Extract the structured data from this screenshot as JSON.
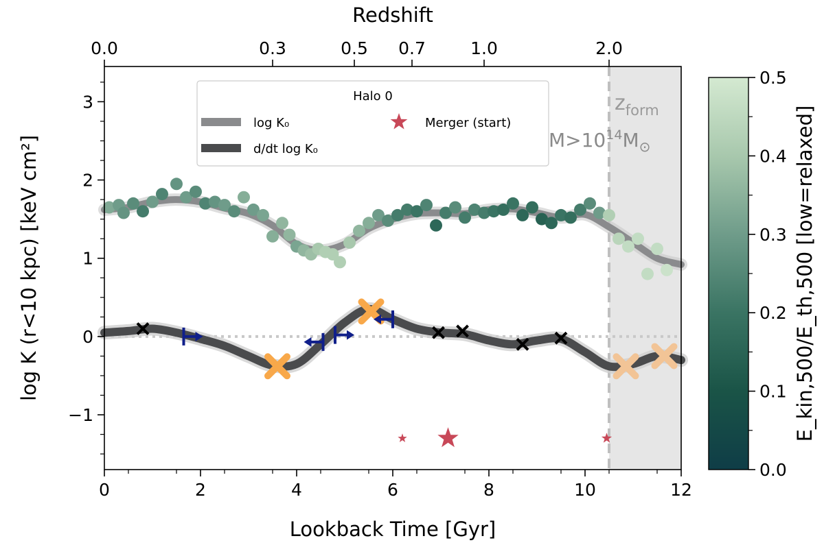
{
  "chart_data": {
    "type": "scatter",
    "title": "",
    "xlabel": "Lookback Time [Gyr]",
    "ylabel": "log K (r<10 kpc) [keV cm²]",
    "top_xlabel": "Redshift",
    "xlim": [
      0,
      12
    ],
    "ylim": [
      -1.7,
      3.45
    ],
    "x_ticks": [
      0,
      2,
      4,
      6,
      8,
      10,
      12
    ],
    "y_ticks": [
      -1,
      0,
      1,
      2,
      3
    ],
    "y_tick_labels": [
      "−1",
      "0",
      "1",
      "2",
      "3"
    ],
    "top_ticks": [
      {
        "label": "0.0",
        "x": 0.0
      },
      {
        "label": "0.3",
        "x": 3.5
      },
      {
        "label": "0.5",
        "x": 5.2
      },
      {
        "label": "0.7",
        "x": 6.4
      },
      {
        "label": "1.0",
        "x": 7.9
      },
      {
        "label": "2.0",
        "x": 10.5
      }
    ],
    "colorbar": {
      "label": "E_kin,500/E_th,500 [low=relaxed]",
      "range": [
        0.0,
        0.5
      ],
      "ticks": [
        0.0,
        0.1,
        0.2,
        0.3,
        0.4,
        0.5
      ],
      "tick_labels": [
        "0.0",
        "0.1",
        "0.2",
        "0.3",
        "0.4",
        "0.5"
      ],
      "colors": [
        "#0f3d47",
        "#1a5447",
        "#3a7463",
        "#6f9c8a",
        "#a8c8ad",
        "#d4e9d1"
      ]
    },
    "legend": {
      "title": "Halo 0",
      "placement": "top-center",
      "entries": [
        {
          "label": "log K₀",
          "marker": "line",
          "color": "#8a8b8d"
        },
        {
          "label": "Merger (start)",
          "marker": "star",
          "color": "#c84858"
        },
        {
          "label": "d/dt log K₀",
          "marker": "line",
          "color": "#4a4b4d"
        }
      ]
    },
    "formation": {
      "x": 10.5,
      "label_sym": "z",
      "label_sub": "form",
      "mass_label": "M>10",
      "mass_exp": "14",
      "mass_unit": "M",
      "mass_unit_sub": "⊙"
    },
    "series": [
      {
        "name": "log K₀",
        "color": "#8a8b8d",
        "x": [
          0,
          0.5,
          1.0,
          1.5,
          2.0,
          2.5,
          3.0,
          3.5,
          4.0,
          4.5,
          5.0,
          5.5,
          6.0,
          6.5,
          7.0,
          7.5,
          8.0,
          8.5,
          9.0,
          9.5,
          10.0,
          10.5,
          11.0,
          11.5,
          12.0
        ],
        "y": [
          1.62,
          1.65,
          1.72,
          1.75,
          1.72,
          1.64,
          1.57,
          1.42,
          1.18,
          1.1,
          1.18,
          1.38,
          1.5,
          1.57,
          1.58,
          1.57,
          1.62,
          1.63,
          1.58,
          1.52,
          1.56,
          1.4,
          1.2,
          1.0,
          0.92
        ]
      },
      {
        "name": "d/dt log K₀",
        "color": "#4a4b4d",
        "x": [
          0,
          0.5,
          1.0,
          1.5,
          2.0,
          2.5,
          3.0,
          3.5,
          4.0,
          4.5,
          5.0,
          5.5,
          6.0,
          6.5,
          7.0,
          7.5,
          8.0,
          8.5,
          9.0,
          9.5,
          10.0,
          10.5,
          11.0,
          11.5,
          12.0
        ],
        "y": [
          0.05,
          0.07,
          0.1,
          0.05,
          -0.03,
          -0.12,
          -0.25,
          -0.37,
          -0.35,
          -0.1,
          0.18,
          0.35,
          0.22,
          0.1,
          0.05,
          0.03,
          -0.05,
          -0.1,
          -0.05,
          -0.03,
          -0.2,
          -0.38,
          -0.35,
          -0.25,
          -0.3
        ]
      }
    ],
    "points": {
      "x": [
        0.1,
        0.3,
        0.4,
        0.6,
        0.8,
        1.0,
        1.2,
        1.5,
        1.7,
        1.9,
        2.1,
        2.3,
        2.5,
        2.7,
        2.9,
        3.1,
        3.3,
        3.5,
        3.7,
        3.85,
        4.0,
        4.15,
        4.3,
        4.45,
        4.6,
        4.75,
        4.9,
        5.1,
        5.3,
        5.5,
        5.7,
        5.9,
        6.1,
        6.3,
        6.5,
        6.7,
        6.9,
        7.1,
        7.3,
        7.5,
        7.7,
        7.9,
        8.1,
        8.3,
        8.5,
        8.7,
        8.9,
        9.1,
        9.3,
        9.5,
        9.7,
        9.9,
        10.1,
        10.3,
        10.5,
        10.7,
        10.9,
        11.1,
        11.3,
        11.5,
        11.7
      ],
      "y": [
        1.65,
        1.68,
        1.58,
        1.7,
        1.6,
        1.72,
        1.82,
        1.95,
        1.78,
        1.85,
        1.7,
        1.72,
        1.68,
        1.6,
        1.78,
        1.62,
        1.55,
        1.28,
        1.45,
        1.3,
        1.15,
        1.1,
        1.05,
        1.12,
        1.08,
        1.05,
        0.95,
        1.2,
        1.35,
        1.45,
        1.55,
        1.48,
        1.55,
        1.62,
        1.6,
        1.68,
        1.42,
        1.58,
        1.65,
        1.52,
        1.62,
        1.58,
        1.6,
        1.62,
        1.7,
        1.55,
        1.65,
        1.5,
        1.45,
        1.55,
        1.52,
        1.62,
        1.7,
        1.58,
        1.55,
        1.25,
        1.15,
        1.25,
        0.8,
        1.12,
        0.85
      ],
      "c": [
        0.33,
        0.3,
        0.28,
        0.26,
        0.22,
        0.3,
        0.24,
        0.28,
        0.3,
        0.26,
        0.24,
        0.28,
        0.3,
        0.26,
        0.34,
        0.3,
        0.32,
        0.34,
        0.36,
        0.36,
        0.32,
        0.36,
        0.38,
        0.4,
        0.42,
        0.42,
        0.42,
        0.4,
        0.36,
        0.34,
        0.3,
        0.26,
        0.22,
        0.22,
        0.2,
        0.24,
        0.16,
        0.22,
        0.26,
        0.22,
        0.24,
        0.22,
        0.2,
        0.18,
        0.2,
        0.16,
        0.18,
        0.14,
        0.16,
        0.2,
        0.18,
        0.22,
        0.26,
        0.3,
        0.42,
        0.44,
        0.46,
        0.46,
        0.46,
        0.46,
        0.48
      ]
    },
    "black_x": [
      [
        0.8,
        0.1
      ],
      [
        6.95,
        0.05
      ],
      [
        7.45,
        0.07
      ],
      [
        8.7,
        -0.1
      ],
      [
        9.5,
        -0.02
      ]
    ],
    "orange_x": [
      [
        3.6,
        -0.38
      ],
      [
        5.55,
        0.32
      ],
      [
        10.85,
        -0.38
      ],
      [
        11.65,
        -0.25
      ]
    ],
    "blue_markers": [
      [
        1.65,
        0.0,
        "right"
      ],
      [
        4.55,
        -0.07,
        "left"
      ],
      [
        4.8,
        0.02,
        "right"
      ],
      [
        6.0,
        0.22,
        "left"
      ]
    ],
    "mergers": [
      [
        6.2,
        -1.3,
        0.7
      ],
      [
        7.15,
        -1.3,
        1.6
      ],
      [
        10.45,
        -1.3,
        0.8
      ]
    ]
  }
}
